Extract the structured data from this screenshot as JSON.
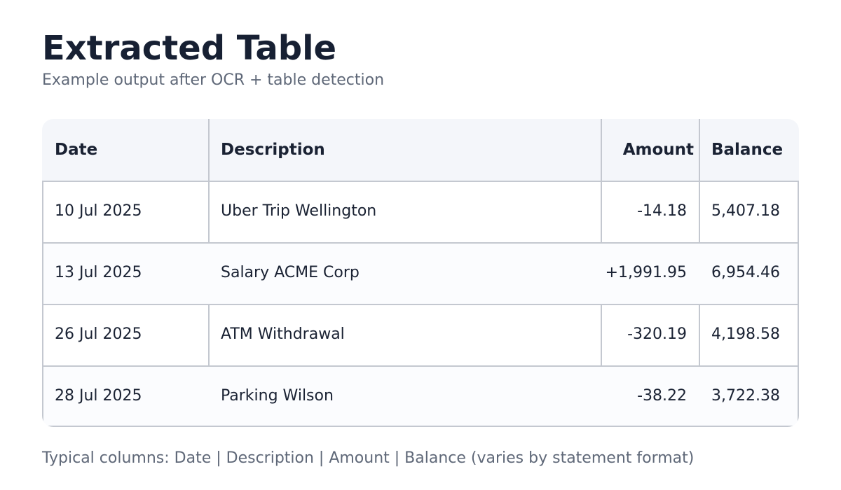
{
  "title": "Extracted Table",
  "subtitle": "Example output after OCR + table detection",
  "table": {
    "columns": [
      "Date",
      "Description",
      "Amount",
      "Balance"
    ],
    "rows": [
      [
        "10 Jul 2025",
        "Uber Trip Wellington",
        "-14.18",
        "5,407.18"
      ],
      [
        "13 Jul 2025",
        "Salary ACME Corp",
        "+1,991.95",
        "6,954.46"
      ],
      [
        "26 Jul 2025",
        "ATM Withdrawal",
        "-320.19",
        "4,198.58"
      ],
      [
        "28 Jul 2025",
        "Parking Wilson",
        "-38.22",
        "3,722.38"
      ]
    ]
  },
  "footnote": "Typical columns: Date | Description | Amount | Balance (varies by statement format)",
  "colors": {
    "title": "#172033",
    "muted_text": "#5f6878",
    "header_bg": "#f4f6fa",
    "border": "#c4c8d0"
  }
}
